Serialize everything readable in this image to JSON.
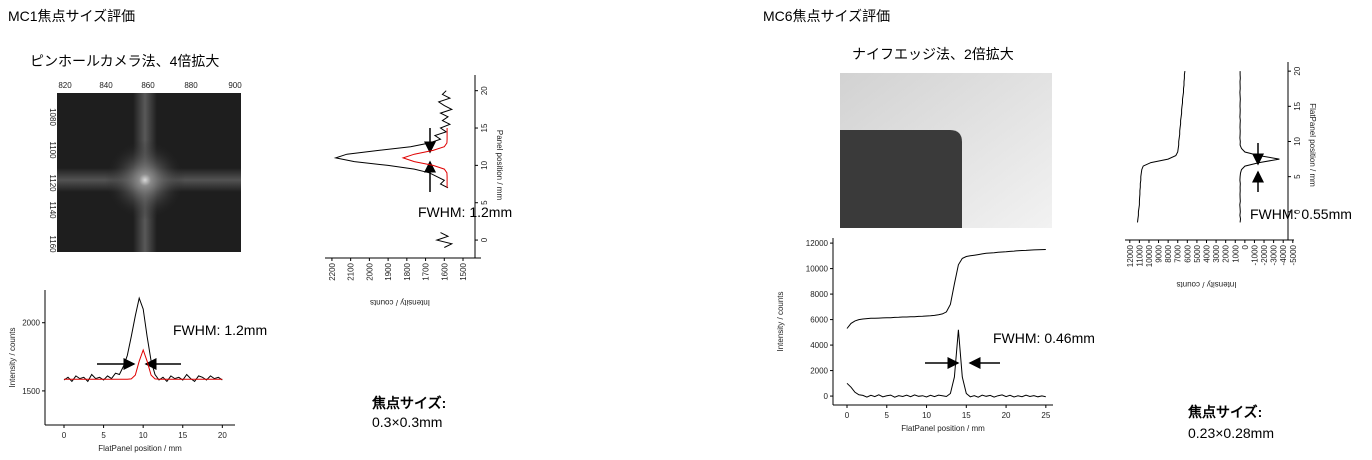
{
  "headings": [
    "MC1焦点サイズ評価",
    "MC6焦点サイズ評価"
  ],
  "images": [
    {
      "caption": "ピンホールカメラ法、4倍拡大",
      "xticks": [
        820,
        840,
        860,
        880,
        900
      ],
      "yticks": [
        1080,
        1100,
        1120,
        1140,
        1160
      ]
    },
    {
      "caption": "ナイフエッジ法、2倍拡大"
    }
  ],
  "results": [
    {
      "label": "焦点サイズ:",
      "value": "0.3×0.3mm"
    },
    {
      "label": "焦点サイズ:",
      "value": "0.23×0.28mm"
    }
  ],
  "chart_data": [
    {
      "type": "line",
      "orientation": "horizontal",
      "xlabel": "FlatPanel position / mm",
      "ylabel": "Intensity / counts",
      "annotation": "FWHM: 1.2mm",
      "xlim": [
        -2.4,
        21.6
      ],
      "xticks": [
        0,
        5,
        10,
        15,
        20
      ],
      "ylim": [
        1250,
        2240
      ],
      "yticks": [
        1500,
        2000
      ],
      "x": [
        0,
        0.5,
        1,
        1.5,
        2,
        2.5,
        3,
        3.5,
        4,
        4.5,
        5,
        5.5,
        6,
        6.5,
        7,
        7.5,
        8,
        8.5,
        9,
        9.5,
        10,
        10.5,
        11,
        11.5,
        12,
        12.5,
        13,
        13.5,
        14,
        14.5,
        15,
        15.5,
        16,
        16.5,
        17,
        17.5,
        18,
        18.5,
        19,
        19.5,
        20
      ],
      "series": [
        {
          "color": "#000000",
          "values": [
            1580,
            1600,
            1570,
            1610,
            1590,
            1600,
            1570,
            1620,
            1590,
            1600,
            1580,
            1610,
            1590,
            1630,
            1620,
            1680,
            1760,
            1900,
            2050,
            2180,
            2100,
            1900,
            1720,
            1620,
            1580,
            1600,
            1570,
            1610,
            1590,
            1600,
            1580,
            1620,
            1590,
            1570,
            1610,
            1600,
            1580,
            1610,
            1590,
            1600,
            1580
          ]
        },
        {
          "color": "#e00000",
          "values": [
            1585,
            1585,
            1585,
            1585,
            1585,
            1585,
            1585,
            1585,
            1585,
            1585,
            1585,
            1585,
            1585,
            1585,
            1585,
            1585,
            1585,
            1588,
            1616,
            1718,
            1800,
            1718,
            1616,
            1588,
            1585,
            1585,
            1585,
            1585,
            1585,
            1585,
            1585,
            1585,
            1585,
            1585,
            1585,
            1585,
            1585,
            1585,
            1585,
            1585,
            1585
          ]
        }
      ]
    },
    {
      "type": "line",
      "orientation": "vertical",
      "xlabel": "Panel position / mm",
      "ylabel": "Intensity / counts",
      "annotation": "FWHM: 1.2mm",
      "xlim": [
        -2,
        22.1
      ],
      "xticks": [
        0,
        5,
        10,
        15,
        20
      ],
      "ylim": [
        2237,
        1436
      ],
      "yticks": [
        2200,
        2100,
        2000,
        1900,
        1800,
        1700,
        1600,
        1500
      ],
      "x": [
        -1,
        -0.5,
        0,
        0.5,
        1,
        1.5,
        2,
        2.5,
        3,
        3.5,
        4,
        4.5,
        5,
        5.5,
        6,
        6.5,
        7,
        7.5,
        8,
        8.5,
        9,
        9.5,
        10,
        10.5,
        11,
        11.5,
        12,
        12.5,
        13,
        13.5,
        14,
        14.5,
        15,
        15.5,
        16,
        16.5,
        17,
        17.5,
        18,
        18.5,
        19,
        19.5,
        20
      ],
      "series": [
        {
          "color": "#000000",
          "values": [
            1600,
            1560,
            1640,
            1580,
            1620,
            null,
            null,
            null,
            null,
            null,
            null,
            null,
            null,
            null,
            null,
            null,
            1580,
            1620,
            1600,
            1640,
            1680,
            1760,
            1900,
            2080,
            2180,
            2120,
            1950,
            1780,
            1680,
            1620,
            1650,
            1590,
            1620,
            1570,
            1610,
            1580,
            1620,
            1560,
            1600,
            1630,
            1570,
            1610,
            1590
          ]
        },
        {
          "color": "#e00000",
          "values": [
            null,
            null,
            null,
            null,
            null,
            null,
            null,
            null,
            null,
            null,
            null,
            null,
            null,
            null,
            null,
            null,
            1585,
            1585,
            1585,
            1585,
            1586,
            1600,
            1660,
            1760,
            1820,
            1760,
            1660,
            1600,
            1586,
            1585,
            1585,
            1585,
            1585,
            null,
            null,
            null,
            null,
            null,
            null,
            null,
            null,
            null,
            null
          ]
        }
      ]
    },
    {
      "type": "line",
      "orientation": "horizontal",
      "xlabel": "FlatPanel position / mm",
      "ylabel": "Intensity / counts",
      "annotation": "FWHM: 0.46mm",
      "xlim": [
        -1.76,
        25.9
      ],
      "xticks": [
        0,
        5,
        10,
        15,
        20,
        25
      ],
      "ylim": [
        -700,
        12400
      ],
      "yticks": [
        0,
        2000,
        4000,
        6000,
        8000,
        10000,
        12000
      ],
      "x": [
        0,
        0.5,
        1,
        1.5,
        2,
        2.5,
        3,
        3.5,
        4,
        4.5,
        5,
        5.5,
        6,
        6.5,
        7,
        7.5,
        8,
        8.5,
        9,
        9.5,
        10,
        10.5,
        11,
        11.5,
        12,
        12.5,
        13,
        13.5,
        14,
        14.5,
        15,
        15.5,
        16,
        16.5,
        17,
        17.5,
        18,
        18.5,
        19,
        19.5,
        20,
        20.5,
        21,
        21.5,
        22,
        22.5,
        23,
        23.5,
        24,
        24.5,
        25
      ],
      "series": [
        {
          "color": "#000000",
          "values": [
            5300,
            5700,
            5900,
            6000,
            6050,
            6080,
            6100,
            6100,
            6120,
            6130,
            6150,
            6150,
            6170,
            6180,
            6200,
            6200,
            6220,
            6230,
            6250,
            6260,
            6280,
            6300,
            6330,
            6380,
            6450,
            6600,
            7200,
            8800,
            10300,
            10800,
            10950,
            11000,
            11050,
            11100,
            11150,
            11200,
            11220,
            11250,
            11280,
            11300,
            11320,
            11350,
            11370,
            11400,
            11420,
            11430,
            11450,
            11470,
            11480,
            11490,
            11500
          ]
        },
        {
          "color": "#000000",
          "values": [
            1000,
            700,
            300,
            100,
            50,
            -80,
            60,
            -40,
            100,
            -60,
            20,
            80,
            -90,
            40,
            -30,
            70,
            -50,
            90,
            -20,
            30,
            -70,
            60,
            -40,
            80,
            20,
            -30,
            200,
            1500,
            5200,
            1500,
            200,
            -60,
            40,
            -90,
            70,
            -20,
            50,
            -80,
            30,
            90,
            -40,
            60,
            -70,
            20,
            -50,
            80,
            -30,
            40,
            -60,
            10,
            -50
          ]
        }
      ]
    },
    {
      "type": "line",
      "orientation": "vertical",
      "xlabel": "FlatPanel position / mm",
      "ylabel": "Intensity / counts",
      "annotation": "FWHM: 0.55mm",
      "xlim": [
        -2.3,
        21.3
      ],
      "xticks": [
        0,
        5,
        10,
        15,
        20
      ],
      "ylim": [
        12500,
        -4500
      ],
      "yticks": [
        12000,
        11000,
        10000,
        9000,
        8000,
        7000,
        6000,
        5000,
        4000,
        3000,
        2000,
        1000,
        0,
        -1000,
        -2000,
        -3000,
        -4000,
        -5000
      ],
      "x": [
        -1.5,
        -1,
        -0.5,
        0,
        0.5,
        1,
        1.5,
        2,
        2.5,
        3,
        3.5,
        4,
        4.5,
        5,
        5.5,
        6,
        6.5,
        7,
        7.5,
        8,
        8.5,
        9,
        9.5,
        10,
        10.5,
        11,
        11.5,
        12,
        12.5,
        13,
        13.5,
        14,
        14.5,
        15,
        15.5,
        16,
        16.5,
        17,
        17.5,
        18,
        18.5,
        19,
        19.5,
        20
      ],
      "series": [
        {
          "color": "#000000",
          "values": [
            11200,
            11150,
            11100,
            11100,
            11050,
            11000,
            11000,
            10980,
            10950,
            10950,
            10900,
            10900,
            10850,
            10850,
            10800,
            10750,
            10600,
            9800,
            8000,
            7200,
            7000,
            6950,
            6900,
            6900,
            6850,
            6800,
            6800,
            6750,
            6700,
            6700,
            6650,
            6600,
            6600,
            6550,
            6500,
            6500,
            6450,
            6400,
            6400,
            6350,
            6350,
            6300,
            6300,
            6250
          ]
        },
        {
          "color": "#000000",
          "values": [
            500,
            450,
            520,
            480,
            500,
            530,
            470,
            500,
            510,
            490,
            500,
            480,
            520,
            500,
            450,
            350,
            0,
            -1500,
            -3600,
            -1500,
            0,
            350,
            500,
            480,
            520,
            500,
            490,
            510,
            500,
            470,
            520,
            500,
            490,
            510,
            500,
            480,
            500,
            520,
            490,
            500,
            510,
            480,
            500,
            500
          ]
        }
      ]
    }
  ]
}
